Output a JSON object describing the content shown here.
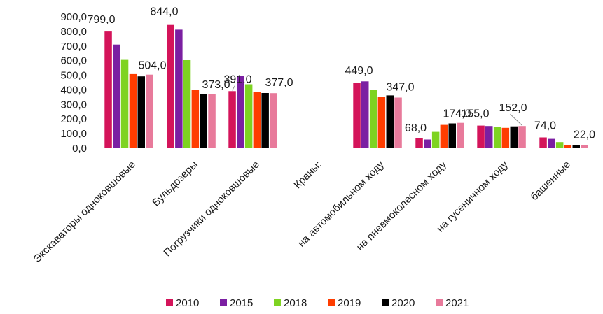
{
  "chart_data": {
    "type": "bar",
    "title": "",
    "xlabel": "",
    "ylabel": "",
    "ylim": [
      0,
      900
    ],
    "yticks": [
      "0,0",
      "100,0",
      "200,0",
      "300,0",
      "400,0",
      "500,0",
      "600,0",
      "700,0",
      "800,0",
      "900,0"
    ],
    "grid": false,
    "legend_position": "bottom",
    "categories": [
      "Экскаваторы одноковшовые",
      "Бульдозеры",
      "Погрузчики одноковшовые",
      "Краны:",
      "на автомобильном ходу",
      "на пневмоколесном ходу",
      "на гусеничном ходу",
      "башенные"
    ],
    "series": [
      {
        "name": "2010",
        "color": "#d4145a",
        "values": [
          799,
          844,
          391,
          null,
          449,
          68,
          155,
          74
        ]
      },
      {
        "name": "2015",
        "color": "#7b1fa2",
        "values": [
          710,
          812,
          495,
          null,
          458,
          60,
          152,
          64
        ]
      },
      {
        "name": "2018",
        "color": "#7ed321",
        "values": [
          605,
          603,
          438,
          null,
          402,
          112,
          145,
          42
        ]
      },
      {
        "name": "2019",
        "color": "#ff3d00",
        "values": [
          508,
          400,
          385,
          null,
          352,
          160,
          140,
          22
        ]
      },
      {
        "name": "2020",
        "color": "#000000",
        "values": [
          492,
          372,
          378,
          null,
          362,
          170,
          150,
          22
        ]
      },
      {
        "name": "2021",
        "color": "#e87a9b",
        "values": [
          504,
          373,
          377,
          null,
          347,
          174,
          152,
          22
        ]
      }
    ],
    "data_labels": [
      {
        "text": "799,0",
        "category": 0,
        "series": 0
      },
      {
        "text": "504,0",
        "category": 0,
        "series": 5
      },
      {
        "text": "844,0",
        "category": 1,
        "series": 0
      },
      {
        "text": "373,0",
        "category": 1,
        "series": 5
      },
      {
        "text": "391,0",
        "category": 2,
        "series": 0
      },
      {
        "text": "377,0",
        "category": 2,
        "series": 5
      },
      {
        "text": "449,0",
        "category": 4,
        "series": 0
      },
      {
        "text": "347,0",
        "category": 4,
        "series": 5
      },
      {
        "text": "68,0",
        "category": 5,
        "series": 0
      },
      {
        "text": "174,0",
        "category": 5,
        "series": 5
      },
      {
        "text": "155,0",
        "category": 6,
        "series": 0
      },
      {
        "text": "152,0",
        "category": 6,
        "series": 5
      },
      {
        "text": "74,0",
        "category": 7,
        "series": 0
      },
      {
        "text": "22,0",
        "category": 7,
        "series": 5
      }
    ]
  }
}
